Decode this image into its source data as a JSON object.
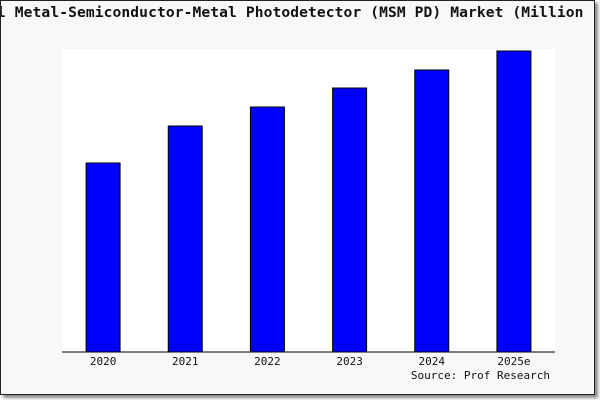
{
  "chart_data": {
    "type": "bar",
    "title": "l Metal-Semiconductor-Metal Photodetector (MSM PD) Market (Million",
    "categories": [
      "2020",
      "2021",
      "2022",
      "2023",
      "2024",
      "2025e"
    ],
    "values": [
      189,
      226,
      245,
      264,
      282,
      301
    ],
    "ylim": [
      0,
      303
    ],
    "xlabel": "",
    "ylabel": "",
    "grid": false,
    "bar_color": "#0000ff",
    "source": "Source: Prof Research"
  }
}
